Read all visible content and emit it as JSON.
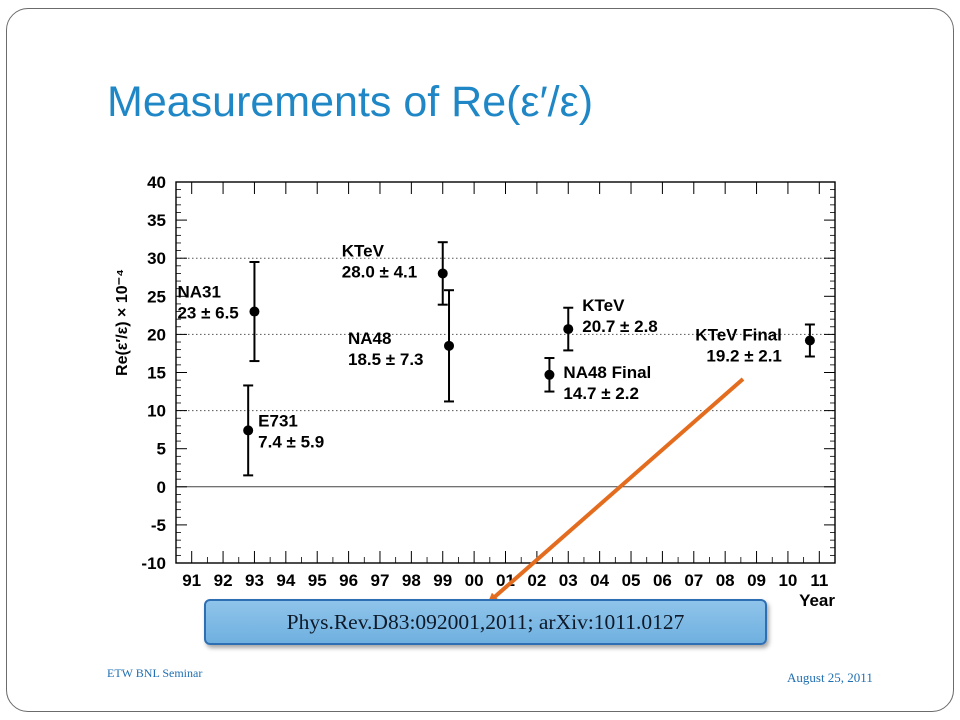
{
  "slide": {
    "title": "Measurements of Re(ε′/ε)",
    "reference": "Phys.Rev.D83:092001,2011; arXiv:1011.0127",
    "footer_left": "ETW BNL Seminar",
    "footer_right": "August 25, 2011",
    "colors": {
      "title": "#1f87c6",
      "arrow": "#e46c1e",
      "ref_box": "#7fb9e6"
    }
  },
  "chart_data": {
    "type": "scatter",
    "title": "",
    "xlabel": "Year",
    "ylabel": "Re(ε′/ε)   × 10⁻⁴",
    "xlim": [
      90.5,
      111.5
    ],
    "ylim": [
      -10,
      40
    ],
    "xticks": [
      "91",
      "92",
      "93",
      "94",
      "95",
      "96",
      "97",
      "98",
      "99",
      "00",
      "01",
      "02",
      "03",
      "04",
      "05",
      "06",
      "07",
      "08",
      "09",
      "10",
      "11"
    ],
    "yticks": [
      "-10",
      "-5",
      "0",
      "5",
      "10",
      "15",
      "20",
      "25",
      "30",
      "35",
      "40"
    ],
    "dotted_gridlines_y": [
      10,
      20,
      30
    ],
    "solid_line_y": 0,
    "points": [
      {
        "name": "NA31",
        "x": 93.0,
        "y": 23,
        "err": 6.5,
        "label_lines": [
          "NA31",
          "23 ± 6.5"
        ]
      },
      {
        "name": "E731",
        "x": 92.8,
        "y": 7.4,
        "err": 5.9,
        "label_lines": [
          "E731",
          "7.4 ± 5.9"
        ]
      },
      {
        "name": "KTeV",
        "x": 99.0,
        "y": 28.0,
        "err": 4.1,
        "label_lines": [
          "KTeV",
          "28.0 ± 4.1"
        ]
      },
      {
        "name": "NA48",
        "x": 99.2,
        "y": 18.5,
        "err": 7.3,
        "label_lines": [
          "NA48",
          "18.5 ± 7.3"
        ]
      },
      {
        "name": "KTeV",
        "x": 103.0,
        "y": 20.7,
        "err": 2.8,
        "label_lines": [
          "KTeV",
          "20.7 ± 2.8"
        ]
      },
      {
        "name": "NA48 Final",
        "x": 102.4,
        "y": 14.7,
        "err": 2.2,
        "label_lines": [
          "NA48 Final",
          "14.7 ± 2.2"
        ]
      },
      {
        "name": "KTeV Final",
        "x": 110.7,
        "y": 19.2,
        "err": 2.1,
        "label_lines": [
          "KTeV Final",
          "19.2 ± 2.1"
        ]
      }
    ]
  }
}
